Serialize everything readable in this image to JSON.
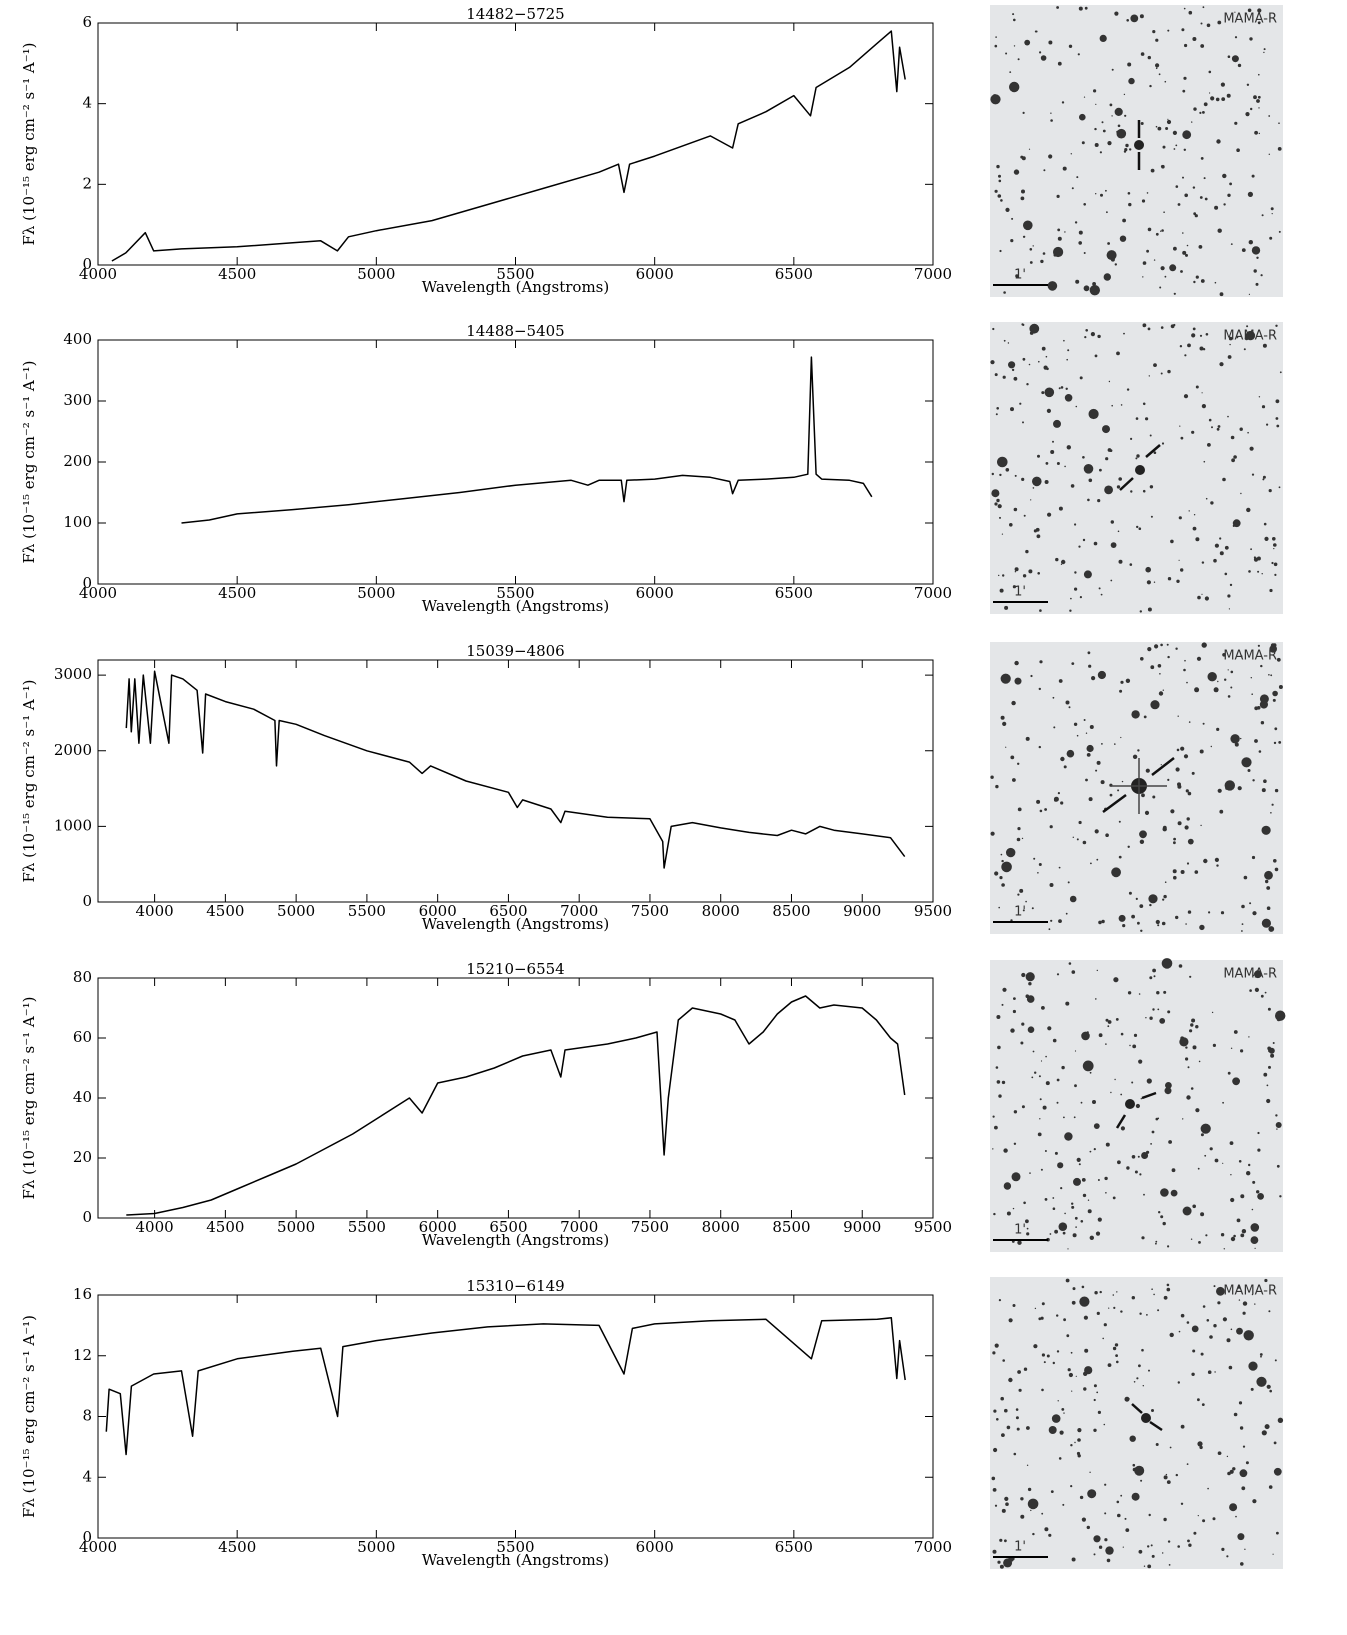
{
  "chart_data": [
    {
      "type": "line",
      "title": "14482−5725",
      "x_label": "Wavelength (Angstroms)",
      "y_label": "Fλ (10⁻¹⁵ erg cm⁻² s⁻¹ A⁻¹)",
      "xlim": [
        4000,
        7000
      ],
      "xticks": [
        4000,
        4500,
        5000,
        5500,
        6000,
        6500,
        7000
      ],
      "ylim": [
        0,
        6
      ],
      "yticks": [
        0,
        2,
        4,
        6
      ],
      "x": [
        4050,
        4100,
        4170,
        4200,
        4300,
        4500,
        4700,
        4800,
        4860,
        4900,
        5000,
        5200,
        5400,
        5600,
        5800,
        5870,
        5890,
        5910,
        6000,
        6200,
        6280,
        6300,
        6400,
        6500,
        6560,
        6580,
        6700,
        6800,
        6850,
        6870,
        6880,
        6900
      ],
      "series": [
        {
          "color": "#000000",
          "values": [
            0.1,
            0.3,
            0.8,
            0.35,
            0.4,
            0.45,
            0.55,
            0.6,
            0.35,
            0.7,
            0.85,
            1.1,
            1.5,
            1.9,
            2.3,
            2.5,
            1.8,
            2.5,
            2.7,
            3.2,
            2.9,
            3.5,
            3.8,
            4.2,
            3.7,
            4.4,
            4.9,
            5.5,
            5.8,
            4.3,
            5.4,
            4.6
          ]
        }
      ]
    },
    {
      "type": "line",
      "title": "14488−5405",
      "x_label": "Wavelength (Angstroms)",
      "y_label": "Fλ (10⁻¹⁵ erg cm⁻² s⁻¹ A⁻¹)",
      "xlim": [
        4000,
        7000
      ],
      "xticks": [
        4000,
        4500,
        5000,
        5500,
        6000,
        6500,
        7000
      ],
      "ylim": [
        0,
        400
      ],
      "yticks": [
        0,
        100,
        200,
        300,
        400
      ],
      "x": [
        4300,
        4400,
        4500,
        4700,
        4900,
        5100,
        5300,
        5500,
        5700,
        5760,
        5800,
        5880,
        5890,
        5900,
        6000,
        6100,
        6200,
        6270,
        6280,
        6300,
        6400,
        6500,
        6550,
        6563,
        6580,
        6600,
        6700,
        6750,
        6780
      ],
      "series": [
        {
          "color": "#000000",
          "values": [
            100,
            105,
            115,
            122,
            130,
            140,
            150,
            162,
            170,
            162,
            170,
            170,
            135,
            170,
            172,
            178,
            175,
            168,
            148,
            170,
            172,
            175,
            180,
            372,
            180,
            172,
            170,
            165,
            143
          ]
        }
      ]
    },
    {
      "type": "line",
      "title": "15039−4806",
      "x_label": "Wavelength (Angstroms)",
      "y_label": "Fλ (10⁻¹⁵ erg cm⁻² s⁻¹ A⁻¹)",
      "xlim": [
        3600,
        9500
      ],
      "xticks": [
        4000,
        4500,
        5000,
        5500,
        6000,
        6500,
        7000,
        7500,
        8000,
        8500,
        9000,
        9500
      ],
      "ylim": [
        0,
        3200
      ],
      "yticks": [
        0,
        1000,
        2000,
        3000
      ],
      "x": [
        3800,
        3820,
        3835,
        3860,
        3889,
        3920,
        3970,
        4000,
        4101,
        4120,
        4200,
        4300,
        4340,
        4360,
        4500,
        4700,
        4850,
        4861,
        4880,
        5000,
        5200,
        5500,
        5800,
        5890,
        5950,
        6200,
        6500,
        6563,
        6600,
        6800,
        6870,
        6900,
        7200,
        7500,
        7590,
        7600,
        7650,
        7800,
        8000,
        8200,
        8400,
        8500,
        8600,
        8700,
        8800,
        9000,
        9200,
        9300
      ],
      "series": [
        {
          "color": "#000000",
          "values": [
            2300,
            2950,
            2250,
            2950,
            2100,
            3000,
            2100,
            3050,
            2100,
            3000,
            2950,
            2800,
            1970,
            2750,
            2650,
            2550,
            2400,
            1800,
            2400,
            2350,
            2200,
            2000,
            1850,
            1700,
            1800,
            1600,
            1450,
            1250,
            1350,
            1230,
            1050,
            1200,
            1120,
            1100,
            800,
            450,
            1000,
            1050,
            980,
            920,
            880,
            950,
            900,
            1000,
            950,
            900,
            850,
            600
          ]
        }
      ]
    },
    {
      "type": "line",
      "title": "15210−6554",
      "x_label": "Wavelength (Angstroms)",
      "y_label": "Fλ (10⁻¹⁵ erg cm⁻² s⁻¹ A⁻¹)",
      "xlim": [
        3600,
        9500
      ],
      "xticks": [
        4000,
        4500,
        5000,
        5500,
        6000,
        6500,
        7000,
        7500,
        8000,
        8500,
        9000,
        9500
      ],
      "ylim": [
        0,
        80
      ],
      "yticks": [
        0,
        20,
        40,
        60,
        80
      ],
      "x": [
        3800,
        4000,
        4200,
        4400,
        4600,
        4800,
        5000,
        5200,
        5400,
        5600,
        5800,
        5890,
        6000,
        6200,
        6400,
        6600,
        6800,
        6870,
        6900,
        7200,
        7400,
        7550,
        7600,
        7630,
        7700,
        7800,
        8000,
        8100,
        8200,
        8300,
        8400,
        8500,
        8600,
        8700,
        8800,
        9000,
        9100,
        9200,
        9250,
        9300
      ],
      "series": [
        {
          "color": "#000000",
          "values": [
            1,
            1.5,
            3.5,
            6,
            10,
            14,
            18,
            23,
            28,
            34,
            40,
            35,
            45,
            47,
            50,
            54,
            56,
            47,
            56,
            58,
            60,
            62,
            21,
            40,
            66,
            70,
            68,
            66,
            58,
            62,
            68,
            72,
            74,
            70,
            71,
            70,
            66,
            60,
            58,
            41
          ]
        }
      ]
    },
    {
      "type": "line",
      "title": "15310−6149",
      "x_label": "Wavelength (Angstroms)",
      "y_label": "Fλ (10⁻¹⁵ erg cm⁻² s⁻¹ A⁻¹)",
      "xlim": [
        4000,
        7000
      ],
      "xticks": [
        4000,
        4500,
        5000,
        5500,
        6000,
        6500,
        7000
      ],
      "ylim": [
        0,
        16
      ],
      "yticks": [
        0,
        4,
        8,
        12,
        16
      ],
      "x": [
        4030,
        4040,
        4080,
        4101,
        4120,
        4200,
        4300,
        4340,
        4360,
        4500,
        4700,
        4800,
        4861,
        4880,
        5000,
        5200,
        5400,
        5600,
        5800,
        5890,
        5920,
        6000,
        6200,
        6400,
        6563,
        6600,
        6800,
        6850,
        6870,
        6880,
        6900
      ],
      "series": [
        {
          "color": "#000000",
          "values": [
            7,
            9.8,
            9.5,
            5.5,
            10,
            10.8,
            11,
            6.7,
            11,
            11.8,
            12.3,
            12.5,
            8,
            12.6,
            13,
            13.5,
            13.9,
            14.1,
            14,
            10.8,
            13.8,
            14.1,
            14.3,
            14.4,
            11.8,
            14.3,
            14.4,
            14.5,
            10.5,
            13,
            10.4
          ]
        }
      ]
    }
  ],
  "finder_charts": [
    {
      "label": "MAMA-R",
      "scale": "1'"
    },
    {
      "label": "MAMA-R",
      "scale": "1'"
    },
    {
      "label": "MAMA-R",
      "scale": "1'"
    },
    {
      "label": "MAMA-R",
      "scale": "1'"
    },
    {
      "label": "MAMA-R",
      "scale": "1'"
    }
  ]
}
